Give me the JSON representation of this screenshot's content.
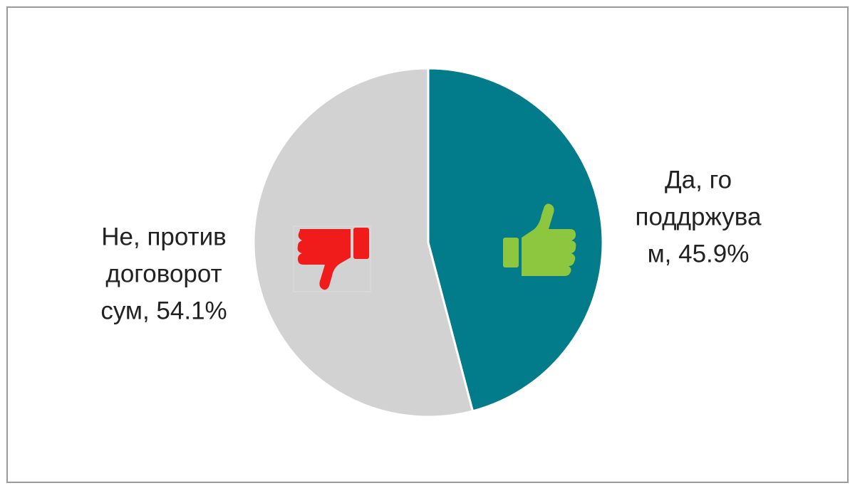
{
  "chart_data": {
    "type": "pie",
    "labels": [
      [
        "Да, го",
        "поддржува",
        "м, 45.9%"
      ],
      [
        "Не, против",
        "договорот",
        "сум, 54.1%"
      ]
    ],
    "values": [
      45.9,
      54.1
    ],
    "colors": [
      "#027c8a",
      "#d2d2d2"
    ]
  }
}
